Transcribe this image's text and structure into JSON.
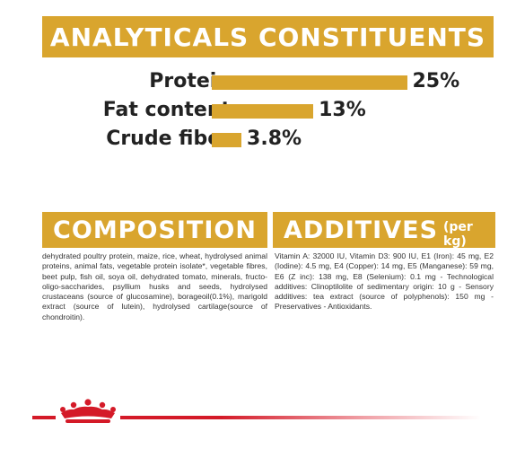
{
  "analytics": {
    "title": "ANALYTICALS CONSTITUENTS",
    "rows": [
      {
        "label": "Protein",
        "value": "25%",
        "percent": 25
      },
      {
        "label": "Fat content",
        "value": "13%",
        "percent": 13
      },
      {
        "label": "Crude fiber",
        "value": "3.8%",
        "percent": 3.8
      }
    ]
  },
  "composition": {
    "title": "COMPOSITION",
    "text": "dehydrated poultry protein, maize, rice, wheat, hydrolysed animal proteins, animal fats, vegetable protein isolate*, vegetable fibres, beet pulp, fish oil, soya oil, dehydrated tomato, minerals, fructo-oligo-saccharides, psyllium husks and seeds, hydrolysed crustaceans (source of glucosamine), borageoil(0.1%), marigold extract (source of lutein), hydrolysed cartilage(source of chondroitin)."
  },
  "additives": {
    "title": "ADDITIVES",
    "suffix": "(per kg)",
    "text": "Vitamin A: 32000 IU, Vitamin D3: 900 IU, E1 (Iron): 45 mg, E2 (Iodine): 4.5 mg, E4 (Copper): 14 mg, E5 (Manganese): 59 mg, E6 (Z inc): 138 mg, E8 (Selenium): 0.1 mg - Technological additives: Clinoptilolite of sedimentary origin: 10 g - Sensory additives: tea extract (source of polyphenols): 150 mg - Preservatives - Antioxidants."
  },
  "colors": {
    "accent": "#d9a52e",
    "brand_red": "#d41a28"
  },
  "footer": {
    "logo": "crown-icon"
  }
}
